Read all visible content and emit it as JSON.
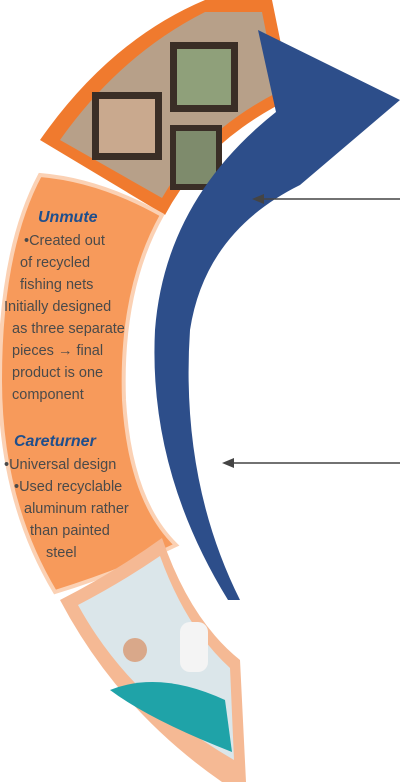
{
  "sections": [
    {
      "title": "Unmute",
      "lines": [
        "•Created out",
        "of recycled",
        "fishing nets",
        "Initially designed",
        "as three separate",
        "pieces → final",
        "product is one",
        "component"
      ]
    },
    {
      "title": "Careturner",
      "lines": [
        "•Universal design",
        "•Used recyclable",
        "aluminum rather",
        "than painted",
        "steel"
      ]
    }
  ]
}
